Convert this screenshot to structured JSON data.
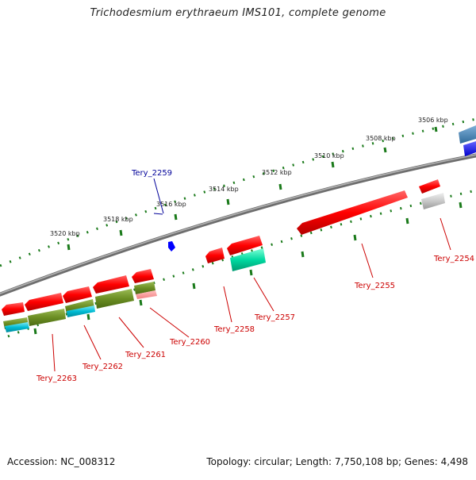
{
  "title": "Trichodesmium erythraeum IMS101, complete genome",
  "footer": {
    "accession": "Accession: NC_008312",
    "summary": "Topology: circular; Length: 7,750,108 bp; Genes: 4,498"
  },
  "ruler_ticks": [
    "3506 kbp",
    "3508 kbp",
    "3510 kbp",
    "3512 kbp",
    "3514 kbp",
    "3516 kbp",
    "3518 kbp",
    "3520 kbp"
  ],
  "genes": [
    {
      "label": "Tery_2254",
      "color": "#ff0000"
    },
    {
      "label": "Tery_2255",
      "color": "#ff0000"
    },
    {
      "label": "Tery_2257",
      "color": "#ff0000"
    },
    {
      "label": "Tery_2258",
      "color": "#ff0000"
    },
    {
      "label": "Tery_2259",
      "color": "#0000cc"
    },
    {
      "label": "Tery_2260",
      "color": "#ff0000"
    },
    {
      "label": "Tery_2261",
      "color": "#ff0000"
    },
    {
      "label": "Tery_2262",
      "color": "#ff0000"
    },
    {
      "label": "Tery_2263",
      "color": "#ff0000"
    }
  ],
  "colors": {
    "backbone": "#808080",
    "cds": "#ff0000",
    "rna": "#0000ff",
    "olive": "#6b8e23",
    "cyan": "#00bcd4",
    "teal": "#00d9a0",
    "grey_feature": "#c0c0c0",
    "steel": "#4682b4",
    "tick": "#1a7a1a",
    "label_red": "#cc0000",
    "label_blue": "#000099"
  }
}
